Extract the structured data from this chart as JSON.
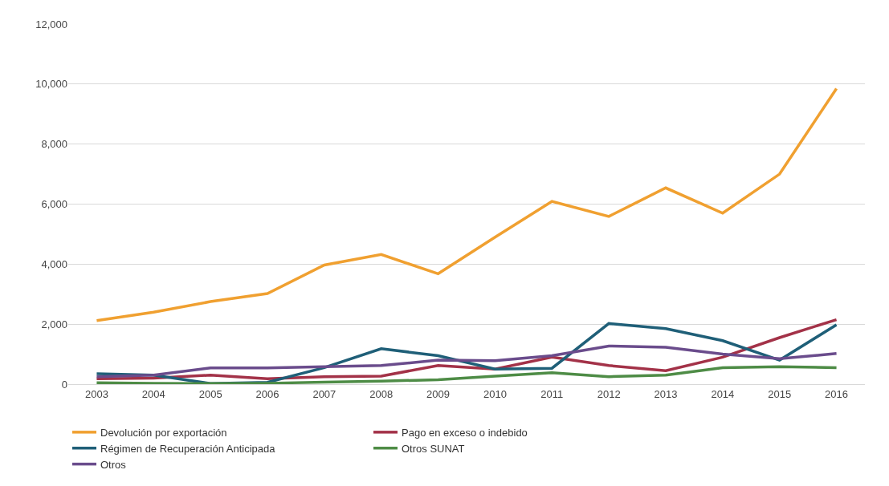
{
  "chart_data": {
    "type": "line",
    "categories": [
      "2003",
      "2004",
      "2005",
      "2006",
      "2007",
      "2008",
      "2009",
      "2010",
      "2011",
      "2012",
      "2013",
      "2014",
      "2015",
      "2016"
    ],
    "series": [
      {
        "name": "Devolución por exportación",
        "color": "#f0a030",
        "values": [
          2120,
          2400,
          2750,
          3020,
          3970,
          4320,
          3680,
          4900,
          6090,
          5590,
          6540,
          5700,
          7000,
          9850
        ]
      },
      {
        "name": "Pago en exceso o indebido",
        "color": "#a33248",
        "values": [
          180,
          200,
          300,
          180,
          250,
          270,
          620,
          500,
          900,
          620,
          450,
          900,
          1550,
          2150
        ]
      },
      {
        "name": "Régimen de Recuperación Anticipada",
        "color": "#1f5f78",
        "values": [
          350,
          300,
          20,
          60,
          550,
          1180,
          950,
          500,
          530,
          2020,
          1850,
          1450,
          800,
          1980
        ]
      },
      {
        "name": "Otros SUNAT",
        "color": "#4e8c46",
        "values": [
          50,
          30,
          20,
          30,
          70,
          100,
          150,
          270,
          380,
          250,
          300,
          550,
          580,
          550
        ]
      },
      {
        "name": "Otros",
        "color": "#6a4c8c",
        "values": [
          250,
          300,
          540,
          540,
          580,
          620,
          800,
          780,
          950,
          1270,
          1230,
          1000,
          850,
          1020
        ]
      }
    ],
    "ylim": [
      0,
      12000
    ],
    "yticks": [
      0,
      {
        "value": 2000,
        "label": "2,000"
      },
      {
        "value": 4000,
        "label": "4,000"
      },
      {
        "value": 6000,
        "label": "6,000"
      },
      {
        "value": 8000,
        "label": "8,000"
      },
      {
        "value": 10000,
        "label": "10,000"
      },
      {
        "value": 12000,
        "label": "12,000"
      }
    ],
    "grid": "y",
    "legend": "bottom",
    "marker": "none",
    "line_style": "solid"
  }
}
